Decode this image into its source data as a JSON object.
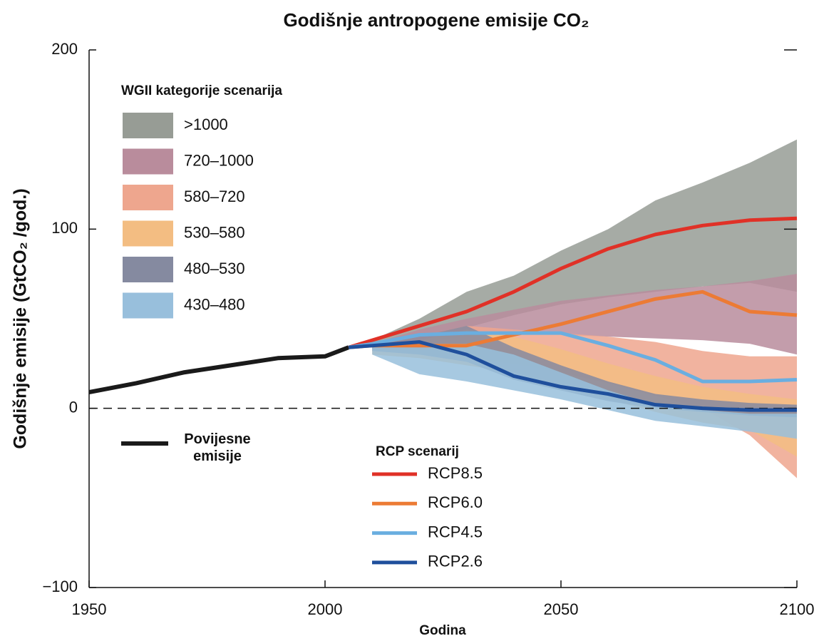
{
  "chart_data": {
    "type": "line",
    "title": "Godišnje antropogene emisije CO₂",
    "x_label": "Godina",
    "y_label": "Godišnje emisije (GtCO₂ /god.)",
    "xlim": [
      1950,
      2100
    ],
    "xticks": [
      1950,
      2000,
      2050,
      2100
    ],
    "ylim": [
      -100,
      200
    ],
    "yticks": [
      {
        "value": -100,
        "label": "−100"
      },
      0,
      100,
      200
    ],
    "historical": {
      "name": "Povijesne emisije",
      "color": "#1a1a1a",
      "x": [
        1950,
        1960,
        1970,
        1980,
        1990,
        2000,
        2005
      ],
      "values": [
        9,
        14,
        20,
        24,
        28,
        29,
        34
      ]
    },
    "bands": {
      "title": "WGII kategorije scenarija",
      "x": [
        2010,
        2020,
        2030,
        2040,
        2050,
        2060,
        2070,
        2080,
        2090,
        2100
      ],
      "series": [
        {
          "name": ">1000",
          "color": "#979c95",
          "upper": [
            38,
            50,
            65,
            74,
            88,
            100,
            116,
            126,
            137,
            150
          ],
          "lower": [
            34,
            40,
            45,
            52,
            58,
            62,
            65,
            68,
            70,
            65
          ]
        },
        {
          "name": "720–1000",
          "color": "#b98c9c",
          "upper": [
            36,
            44,
            50,
            55,
            60,
            63,
            66,
            68,
            71,
            75
          ],
          "lower": [
            33,
            37,
            40,
            42,
            41,
            40,
            39,
            38,
            36,
            30
          ]
        },
        {
          "name": "580–720",
          "color": "#eea68e",
          "upper": [
            35,
            40,
            46,
            44,
            42,
            40,
            37,
            32,
            29,
            29
          ],
          "lower": [
            32,
            30,
            28,
            25,
            20,
            14,
            7,
            0,
            -15,
            -39
          ]
        },
        {
          "name": "530–580",
          "color": "#f3bd82",
          "upper": [
            34,
            38,
            44,
            40,
            33,
            25,
            18,
            12,
            8,
            5
          ],
          "lower": [
            30,
            28,
            24,
            20,
            12,
            5,
            -2,
            -8,
            -12,
            -27
          ]
        },
        {
          "name": "480–530",
          "color": "#858aa0",
          "upper": [
            35,
            40,
            46,
            34,
            24,
            15,
            8,
            5,
            3,
            2
          ],
          "lower": [
            32,
            30,
            26,
            16,
            10,
            4,
            0,
            -2,
            -4,
            -5
          ]
        },
        {
          "name": "430–480",
          "color": "#98bfdc",
          "upper": [
            34,
            36,
            36,
            30,
            20,
            10,
            2,
            -1,
            -3,
            -3
          ],
          "lower": [
            30,
            19,
            15,
            10,
            5,
            -1,
            -7,
            -10,
            -13,
            -17
          ]
        }
      ]
    },
    "legend_title": "RCP scenarij",
    "x": [
      2005,
      2010,
      2020,
      2030,
      2040,
      2050,
      2060,
      2070,
      2080,
      2090,
      2100
    ],
    "series": [
      {
        "name": "RCP8.5",
        "color": "#e03127",
        "values": [
          34,
          38,
          46,
          54,
          65,
          78,
          89,
          97,
          102,
          105,
          106
        ]
      },
      {
        "name": "RCP6.0",
        "color": "#ec7b35",
        "values": [
          34,
          35,
          35,
          35,
          41,
          47,
          54,
          61,
          65,
          54,
          52
        ]
      },
      {
        "name": "RCP4.5",
        "color": "#6aaee0",
        "values": [
          34,
          36,
          41,
          42,
          42,
          42,
          35,
          27,
          15,
          15,
          16
        ]
      },
      {
        "name": "RCP2.6",
        "color": "#1f4f9c",
        "values": [
          34,
          35,
          37,
          30,
          18,
          12,
          8,
          2,
          0,
          -1,
          -1
        ]
      }
    ]
  }
}
